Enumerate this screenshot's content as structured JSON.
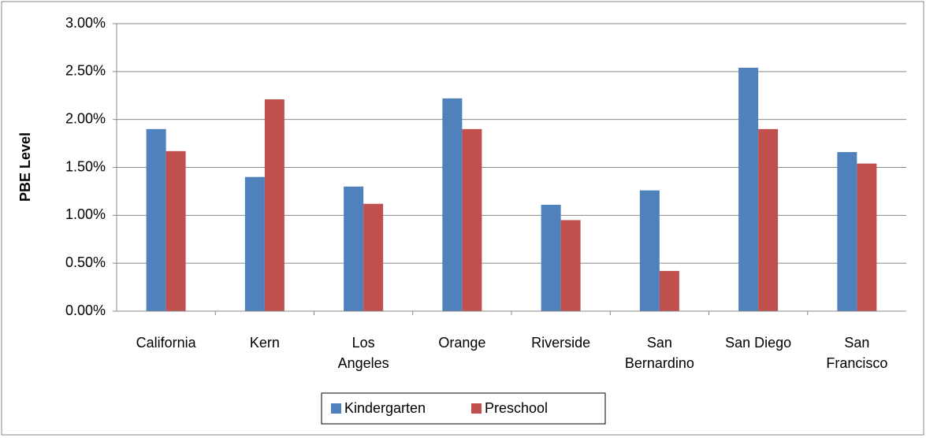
{
  "chart_data": {
    "type": "bar",
    "y_axis_label": "PBE Level",
    "categories": [
      "California",
      "Kern",
      "Los Angeles",
      "Orange",
      "Riverside",
      "San Bernardino",
      "San Diego",
      "San Francisco"
    ],
    "series": [
      {
        "name": "Kindergarten",
        "color": "#4f81bd",
        "values": [
          1.9,
          1.4,
          1.3,
          2.22,
          1.11,
          1.26,
          2.54,
          1.66
        ]
      },
      {
        "name": "Preschool",
        "color": "#c0504d",
        "values": [
          1.67,
          2.21,
          1.12,
          1.9,
          0.95,
          0.42,
          1.9,
          1.54
        ]
      }
    ],
    "ylim": [
      0,
      3
    ],
    "yticks": [
      {
        "value": 0,
        "label": "0.00%"
      },
      {
        "value": 0.5,
        "label": "0.50%"
      },
      {
        "value": 1,
        "label": "1.00%"
      },
      {
        "value": 1.5,
        "label": "1.50%"
      },
      {
        "value": 2,
        "label": "2.00%"
      },
      {
        "value": 2.5,
        "label": "2.50%"
      },
      {
        "value": 3,
        "label": "3.00%"
      }
    ],
    "grid": true,
    "legend": "bottom"
  }
}
